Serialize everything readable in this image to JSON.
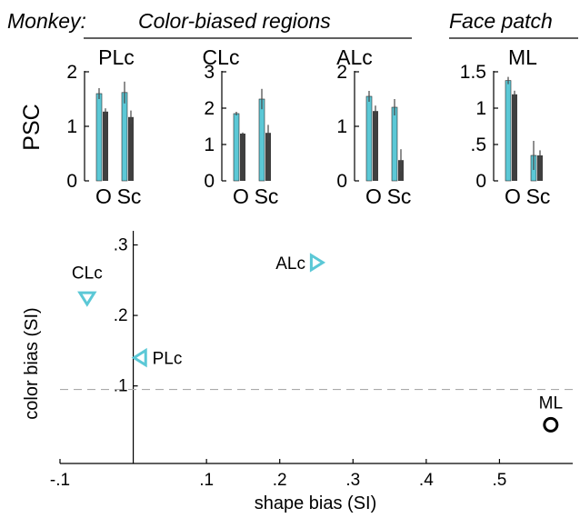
{
  "header": {
    "species_label": "Monkey:",
    "group_color_label": "Color-biased regions",
    "group_face_label": "Face patch"
  },
  "colors": {
    "object_bar": "#5bc8d6",
    "scrambled_bar": "#3f3f3f",
    "marker_region": "#5bc8d6",
    "marker_face": "#000000",
    "dashed_line": "#aaaaaa"
  },
  "chart_data": [
    {
      "type": "bar",
      "title": "PLc",
      "ylabel": "PSC",
      "categories": [
        "O",
        "Sc"
      ],
      "ylim": [
        0,
        2
      ],
      "yticks": [
        0,
        1,
        2
      ],
      "ytick_labels": [
        "0",
        "1",
        "2"
      ],
      "series": [
        {
          "values": [
            1.6,
            1.27
          ],
          "errors": [
            0.1,
            0.06
          ]
        },
        {
          "values": [
            1.62,
            1.17
          ],
          "errors": [
            0.2,
            0.12
          ]
        }
      ]
    },
    {
      "type": "bar",
      "title": "CLc",
      "categories": [
        "O",
        "Sc"
      ],
      "ylim": [
        0,
        3
      ],
      "yticks": [
        0,
        1,
        2,
        3
      ],
      "ytick_labels": [
        "0",
        "1",
        "2",
        "3"
      ],
      "series": [
        {
          "values": [
            1.85,
            1.3
          ],
          "errors": [
            0.05,
            0.03
          ]
        },
        {
          "values": [
            2.25,
            1.32
          ],
          "errors": [
            0.28,
            0.22
          ]
        }
      ]
    },
    {
      "type": "bar",
      "title": "ALc",
      "categories": [
        "O",
        "Sc"
      ],
      "ylim": [
        0,
        2
      ],
      "yticks": [
        0,
        1,
        2
      ],
      "ytick_labels": [
        "0",
        "1",
        "2"
      ],
      "series": [
        {
          "values": [
            1.55,
            1.28
          ],
          "errors": [
            0.1,
            0.1
          ]
        },
        {
          "values": [
            1.35,
            0.38
          ],
          "errors": [
            0.15,
            0.2
          ]
        }
      ]
    },
    {
      "type": "bar",
      "title": "ML",
      "categories": [
        "O",
        "Sc"
      ],
      "ylim": [
        0,
        1.5
      ],
      "yticks": [
        0,
        0.5,
        1,
        1.5
      ],
      "ytick_labels": [
        "0",
        ".5",
        "1",
        "1.5"
      ],
      "series": [
        {
          "values": [
            1.38,
            1.19
          ],
          "errors": [
            0.05,
            0.05
          ]
        },
        {
          "values": [
            0.35,
            0.35
          ],
          "errors": [
            0.2,
            0.07
          ]
        }
      ]
    },
    {
      "type": "scatter",
      "xlabel": "shape bias (SI)",
      "ylabel": "color bias (SI)",
      "xlim": [
        -0.1,
        0.6
      ],
      "ylim": [
        -0.01,
        0.32
      ],
      "xticks": [
        -0.1,
        0.1,
        0.2,
        0.3,
        0.4,
        0.5
      ],
      "xtick_labels": [
        "-.1",
        ".1",
        ".2",
        ".3",
        ".4",
        ".5"
      ],
      "yticks": [
        0.1,
        0.2,
        0.3
      ],
      "ytick_labels": [
        ".1",
        ".2",
        ".3"
      ],
      "reference_line_y": 0.095,
      "points": [
        {
          "label": "CLc",
          "x": -0.063,
          "y": 0.225,
          "marker": "triangle-down"
        },
        {
          "label": "PLc",
          "x": 0.01,
          "y": 0.14,
          "marker": "triangle-left"
        },
        {
          "label": "ALc",
          "x": 0.25,
          "y": 0.275,
          "marker": "triangle-right"
        },
        {
          "label": "ML",
          "x": 0.57,
          "y": 0.045,
          "marker": "circle"
        }
      ]
    }
  ]
}
